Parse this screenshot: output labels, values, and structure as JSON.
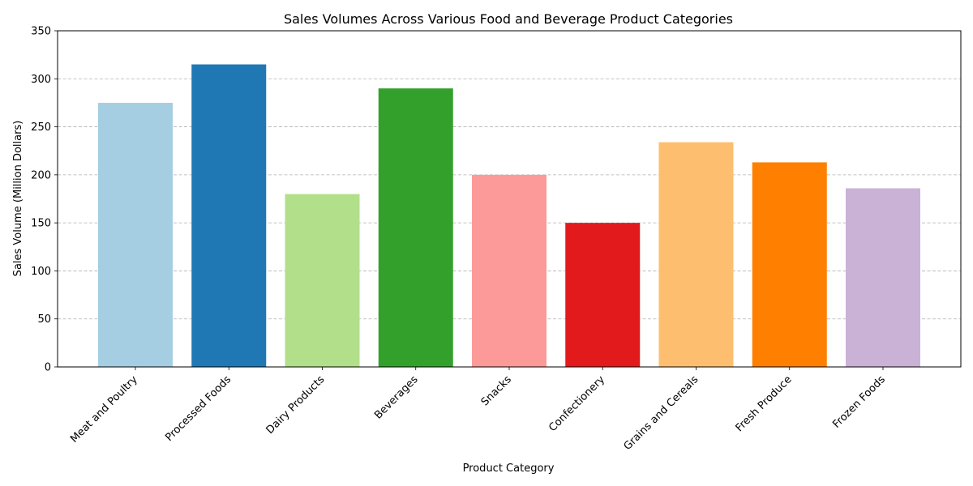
{
  "chart_data": {
    "type": "bar",
    "title": "Sales Volumes Across Various Food and Beverage Product Categories",
    "xlabel": "Product Category",
    "ylabel": "Sales Volume (Million Dollars)",
    "ylim": [
      0,
      350
    ],
    "yticks": [
      0,
      50,
      100,
      150,
      200,
      250,
      300,
      350
    ],
    "grid": "y-dashed",
    "categories": [
      "Meat and Poultry",
      "Processed Foods",
      "Dairy Products",
      "Beverages",
      "Snacks",
      "Confectionery",
      "Grains and Cereals",
      "Fresh Produce",
      "Frozen Foods"
    ],
    "values": [
      275,
      315,
      180,
      290,
      200,
      150,
      234,
      213,
      186
    ],
    "colors": [
      "#a6cee3",
      "#1f78b4",
      "#b2df8a",
      "#33a02c",
      "#fb9a99",
      "#e31a1c",
      "#fdbf6f",
      "#ff7f00",
      "#cab2d6"
    ]
  }
}
